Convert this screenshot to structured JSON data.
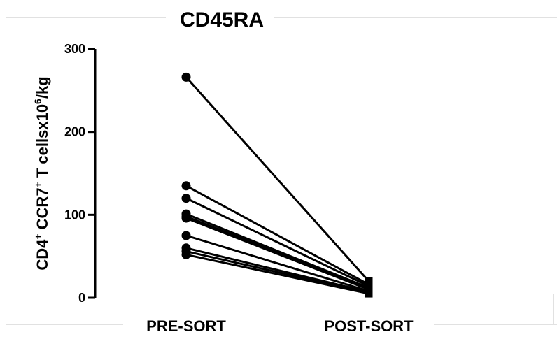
{
  "chart_data": {
    "type": "line",
    "title": "CD45RA",
    "ylabel": "CD4+ CCR7+ T cellsx10^6/kg",
    "ylabel_parts": {
      "a": "CD4",
      "a_sup": "+",
      "b": " CCR7",
      "b_sup": "+",
      "c": " T cellsx10",
      "c_sup": "6",
      "d": "/kg"
    },
    "categories": [
      "PRE-SORT",
      "POST-SORT"
    ],
    "ylim": [
      0,
      300
    ],
    "yticks": [
      0,
      100,
      200,
      300
    ],
    "ytick_labels": [
      "0",
      "100",
      "200",
      "300"
    ],
    "grid": false,
    "legend": "none",
    "marker_pre": "circle",
    "marker_post": "square",
    "pairs": [
      [
        266,
        20
      ],
      [
        135,
        16
      ],
      [
        120,
        14
      ],
      [
        101,
        12
      ],
      [
        98,
        11
      ],
      [
        96,
        10
      ],
      [
        75,
        8
      ],
      [
        60,
        7
      ],
      [
        56,
        6
      ],
      [
        52,
        5
      ]
    ]
  }
}
